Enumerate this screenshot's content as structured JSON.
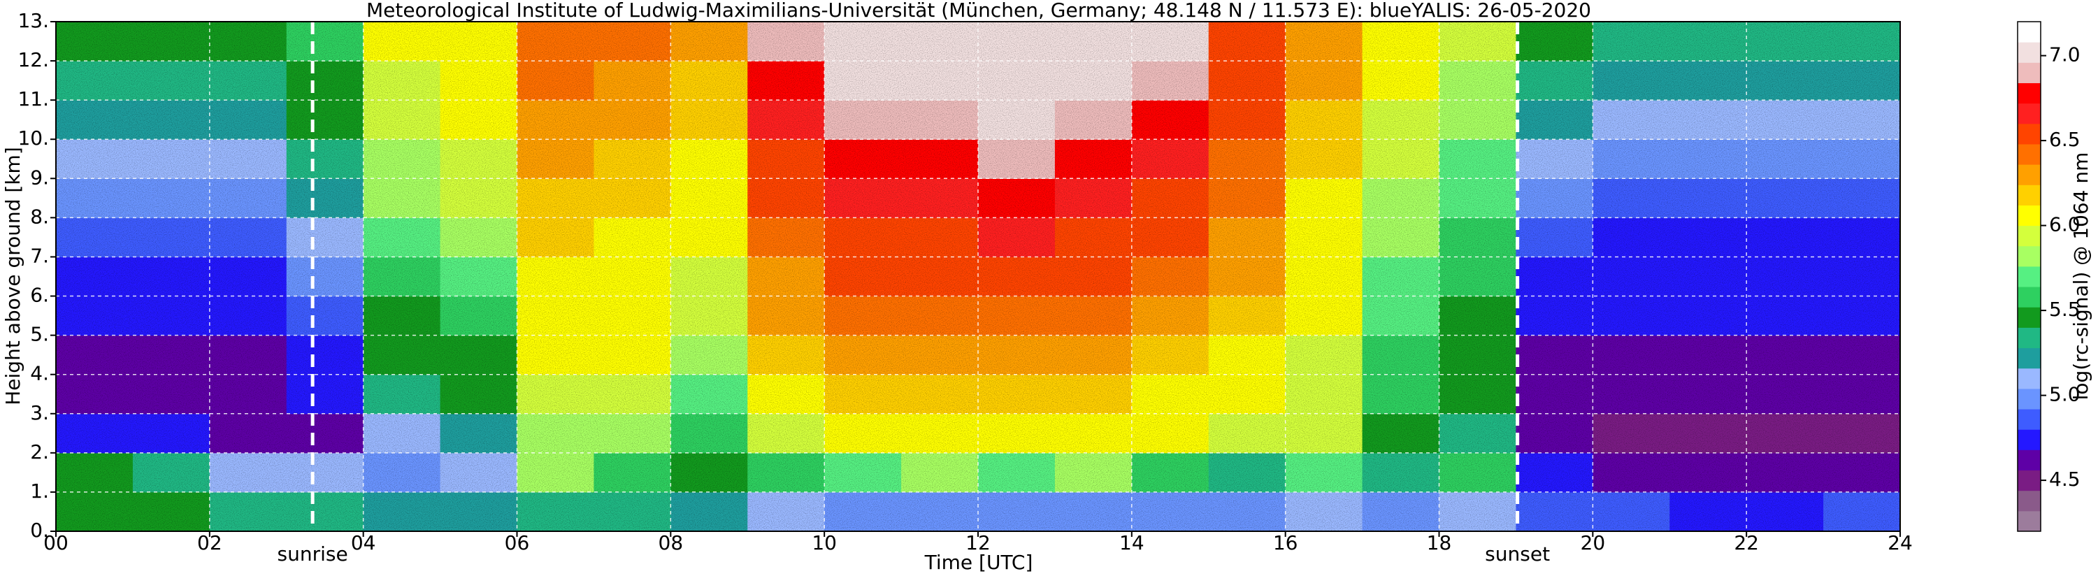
{
  "chart_data": {
    "type": "heatmap",
    "title": "Meteorological Institute of Ludwig-Maximilians-Universität (München, Germany; 48.148 N / 11.573 E):    blueYALIS: 26-05-2020",
    "xlabel": "Time [UTC]",
    "ylabel": "Height above ground [km]",
    "colorbar_label": "log(rc-signal) @ 1064 nm",
    "x": [
      0,
      1,
      2,
      3,
      4,
      5,
      6,
      7,
      8,
      9,
      10,
      11,
      12,
      13,
      14,
      15,
      16,
      17,
      18,
      19,
      20,
      21,
      22,
      23,
      24
    ],
    "y": [
      0,
      1,
      2,
      3,
      4,
      5,
      6,
      7,
      8,
      9,
      10,
      11,
      12,
      13
    ],
    "z": [
      [
        5.5,
        5.4,
        5.3,
        5.3,
        5.2,
        5.2,
        5.3,
        5.3,
        5.2,
        5.1,
        5.0,
        5.0,
        5.0,
        5.0,
        5.0,
        5.0,
        5.1,
        5.0,
        5.1,
        4.9,
        4.9,
        4.8,
        4.8,
        4.9
      ],
      [
        5.4,
        5.3,
        5.1,
        5.1,
        5.0,
        5.1,
        5.8,
        5.6,
        5.5,
        5.6,
        5.7,
        5.8,
        5.7,
        5.8,
        5.6,
        5.3,
        5.7,
        5.3,
        5.6,
        4.7,
        4.6,
        4.6,
        4.6,
        4.6
      ],
      [
        4.7,
        4.8,
        4.6,
        4.6,
        5.1,
        5.2,
        5.8,
        5.8,
        5.6,
        5.9,
        6.0,
        6.1,
        6.1,
        6.1,
        6.0,
        5.9,
        5.9,
        5.5,
        5.3,
        4.6,
        4.5,
        4.5,
        4.5,
        4.5
      ],
      [
        4.6,
        4.6,
        4.6,
        4.7,
        5.3,
        5.4,
        5.9,
        5.9,
        5.7,
        6.1,
        6.2,
        6.2,
        6.2,
        6.2,
        6.1,
        6.0,
        5.9,
        5.6,
        5.4,
        4.6,
        4.6,
        4.6,
        4.6,
        4.6
      ],
      [
        4.6,
        4.6,
        4.6,
        4.8,
        5.4,
        5.5,
        6.0,
        6.0,
        5.8,
        6.2,
        6.3,
        6.3,
        6.3,
        6.3,
        6.2,
        6.1,
        5.9,
        5.6,
        5.4,
        4.6,
        4.6,
        4.6,
        4.6,
        4.6
      ],
      [
        4.7,
        4.7,
        4.7,
        4.9,
        5.5,
        5.6,
        6.1,
        6.0,
        5.9,
        6.3,
        6.4,
        6.4,
        6.4,
        6.4,
        6.3,
        6.2,
        6.0,
        5.7,
        5.5,
        4.7,
        4.7,
        4.7,
        4.7,
        4.7
      ],
      [
        4.8,
        4.8,
        4.8,
        5.0,
        5.6,
        5.7,
        6.1,
        6.1,
        5.9,
        6.3,
        6.5,
        6.5,
        6.5,
        6.5,
        6.4,
        6.3,
        6.0,
        5.7,
        5.6,
        4.8,
        4.8,
        4.8,
        4.8,
        4.8
      ],
      [
        4.9,
        4.9,
        4.9,
        5.1,
        5.7,
        5.8,
        6.2,
        6.1,
        6.0,
        6.4,
        6.6,
        6.6,
        6.7,
        6.6,
        6.5,
        6.3,
        6.1,
        5.8,
        5.6,
        4.9,
        4.8,
        4.8,
        4.8,
        4.8
      ],
      [
        5.0,
        5.0,
        5.0,
        5.2,
        5.8,
        5.9,
        6.2,
        6.2,
        6.0,
        6.5,
        6.7,
        6.7,
        6.8,
        6.7,
        6.6,
        6.4,
        6.1,
        5.8,
        5.7,
        5.0,
        4.9,
        4.9,
        4.9,
        4.9
      ],
      [
        5.1,
        5.1,
        5.1,
        5.3,
        5.8,
        5.9,
        6.3,
        6.2,
        6.1,
        6.6,
        6.8,
        6.8,
        6.9,
        6.8,
        6.7,
        6.4,
        6.2,
        5.9,
        5.7,
        5.1,
        5.0,
        5.0,
        5.0,
        5.0
      ],
      [
        5.2,
        5.2,
        5.2,
        5.4,
        5.9,
        6.0,
        6.3,
        6.3,
        6.2,
        6.7,
        6.9,
        6.9,
        7.0,
        6.9,
        6.8,
        6.5,
        6.2,
        5.9,
        5.8,
        5.2,
        5.1,
        5.1,
        5.1,
        5.1
      ],
      [
        5.3,
        5.3,
        5.3,
        5.5,
        5.9,
        6.0,
        6.4,
        6.3,
        6.2,
        6.8,
        7.0,
        7.0,
        7.0,
        7.0,
        6.9,
        6.5,
        6.3,
        6.0,
        5.8,
        5.3,
        5.2,
        5.2,
        5.2,
        5.2
      ],
      [
        5.4,
        5.4,
        5.4,
        5.6,
        6.0,
        6.1,
        6.4,
        6.4,
        6.3,
        6.9,
        7.0,
        7.0,
        7.0,
        7.0,
        7.0,
        6.6,
        6.3,
        6.0,
        5.9,
        5.4,
        5.3,
        5.3,
        5.3,
        5.3
      ]
    ],
    "xlim": [
      0,
      24
    ],
    "ylim": [
      0,
      13
    ],
    "clim": [
      4.2,
      7.2
    ],
    "xticks": [
      {
        "value": 0,
        "label": "00"
      },
      {
        "value": 2,
        "label": "02"
      },
      {
        "value": 4,
        "label": "04"
      },
      {
        "value": 6,
        "label": "06"
      },
      {
        "value": 8,
        "label": "08"
      },
      {
        "value": 10,
        "label": "10"
      },
      {
        "value": 12,
        "label": "12"
      },
      {
        "value": 14,
        "label": "14"
      },
      {
        "value": 16,
        "label": "16"
      },
      {
        "value": 18,
        "label": "18"
      },
      {
        "value": 20,
        "label": "20"
      },
      {
        "value": 22,
        "label": "22"
      },
      {
        "value": 24,
        "label": "24"
      }
    ],
    "yticks": [
      {
        "value": 0,
        "label": "0."
      },
      {
        "value": 1,
        "label": "1."
      },
      {
        "value": 2,
        "label": "2."
      },
      {
        "value": 3,
        "label": "3."
      },
      {
        "value": 4,
        "label": "4."
      },
      {
        "value": 5,
        "label": "5."
      },
      {
        "value": 6,
        "label": "6."
      },
      {
        "value": 7,
        "label": "7."
      },
      {
        "value": 8,
        "label": "8."
      },
      {
        "value": 9,
        "label": "9."
      },
      {
        "value": 10,
        "label": "10."
      },
      {
        "value": 11,
        "label": "11."
      },
      {
        "value": 12,
        "label": "12."
      },
      {
        "value": 13,
        "label": "13."
      }
    ],
    "cticks": [
      4.5,
      {
        "value": 5,
        "label": "5.0"
      },
      5.5,
      {
        "value": 6,
        "label": "6.0"
      },
      6.5,
      {
        "value": 7,
        "label": "7.0"
      }
    ],
    "colormap": [
      "#9c7c9c",
      "#8a5a8a",
      "#7a1c84",
      "#5e00a6",
      "#2418ff",
      "#3e5cff",
      "#6a94ff",
      "#9ab8ff",
      "#1e9e9e",
      "#20b884",
      "#129a1e",
      "#2ed060",
      "#56f082",
      "#a8ff62",
      "#d4ff3c",
      "#ffff00",
      "#ffd000",
      "#ffa000",
      "#ff7000",
      "#ff4400",
      "#ff2020",
      "#ff0000",
      "#eebcbc",
      "#f2e0e0",
      "#ffffff"
    ],
    "grid": true,
    "annotations": [
      {
        "text": "sunrise",
        "x": 3.34
      },
      {
        "text": "sunset",
        "x": 19.02
      }
    ]
  }
}
